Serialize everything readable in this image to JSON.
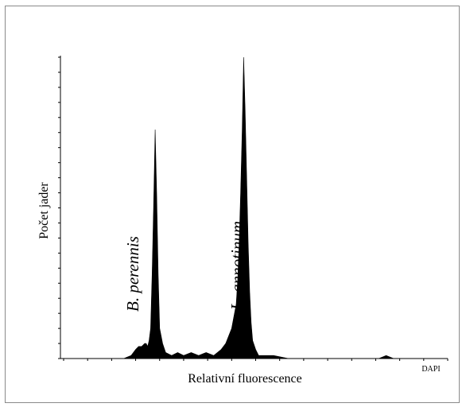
{
  "chart_data": {
    "type": "area",
    "title": "",
    "xlabel": "Relativní fluorescence",
    "ylabel": "Počet jader",
    "xaxis_tag": "DAPI",
    "grid": false,
    "legend": "none",
    "fill_color": "#000000",
    "xlim": [
      0,
      256
    ],
    "ylim": [
      0,
      100
    ],
    "x": [
      0,
      5,
      10,
      20,
      30,
      40,
      45,
      48,
      50,
      52,
      54,
      55,
      56,
      57,
      58,
      59,
      60,
      61,
      62,
      63,
      64,
      66,
      68,
      72,
      76,
      80,
      85,
      90,
      95,
      100,
      105,
      108,
      112,
      115,
      116,
      117,
      118,
      119,
      120,
      121,
      122,
      123,
      124,
      125,
      126,
      128,
      130,
      135,
      140,
      150,
      160,
      170,
      180,
      190,
      200,
      210,
      215,
      220,
      230,
      240,
      250,
      256
    ],
    "values": [
      0,
      0,
      0,
      0,
      0,
      0,
      1,
      3,
      4,
      4,
      5,
      5,
      4,
      6,
      10,
      28,
      51,
      76,
      55,
      28,
      10,
      5,
      2,
      1,
      2,
      1,
      2,
      1,
      2,
      1,
      3,
      5,
      10,
      18,
      26,
      38,
      55,
      75,
      100,
      82,
      60,
      38,
      22,
      12,
      6,
      3,
      1,
      1,
      1,
      0,
      0,
      0,
      0,
      0,
      0,
      0,
      1,
      0,
      0,
      0,
      0,
      0
    ],
    "annotations": [
      {
        "text": "B. perennis",
        "x": 60
      },
      {
        "text": "L. annotinum",
        "x": 120
      }
    ]
  }
}
